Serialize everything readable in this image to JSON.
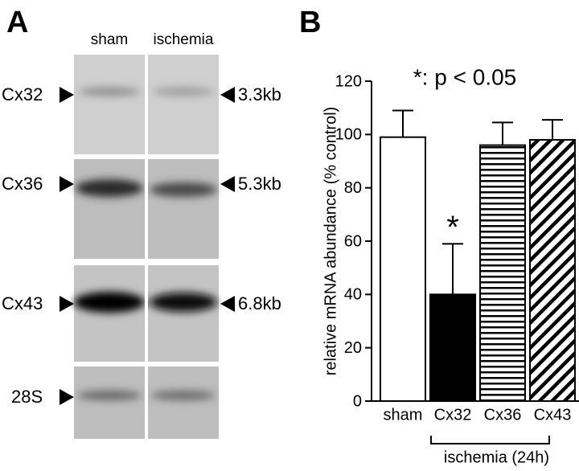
{
  "panel_a": {
    "label": "A",
    "lanes": [
      "sham",
      "ischemia"
    ],
    "rows": [
      {
        "name": "Cx32",
        "size": "3.3kb"
      },
      {
        "name": "Cx36",
        "size": "5.3kb"
      },
      {
        "name": "Cx43",
        "size": "6.8kb"
      },
      {
        "name": "28S"
      }
    ]
  },
  "chart_data": {
    "type": "bar",
    "panel_label": "B",
    "annotation": "*: p < 0.05",
    "ylabel": "relative mRNA abundance (% control)",
    "categories": [
      "sham",
      "Cx32",
      "Cx36",
      "Cx43"
    ],
    "values": [
      99,
      40,
      96,
      98
    ],
    "errors": [
      10,
      19,
      8.5,
      7.5
    ],
    "fills": [
      "white",
      "black",
      "hlines",
      "dlines"
    ],
    "significance_labels": [
      null,
      "*",
      null,
      null
    ],
    "group_label": "ischemia (24h)",
    "ylim": [
      0,
      120
    ],
    "yticks": [
      0,
      20,
      40,
      60,
      80,
      100,
      120
    ]
  }
}
